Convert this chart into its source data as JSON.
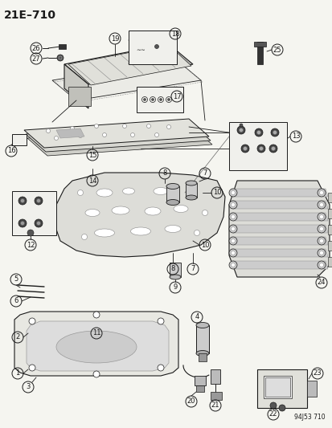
{
  "title": "21E–710",
  "footer": "94J53 710",
  "bg_color": "#f5f5f0",
  "fg_color": "#1a1a1a",
  "fig_width": 4.14,
  "fig_height": 5.33,
  "dpi": 100,
  "label_r": 7,
  "label_fs": 6.0
}
